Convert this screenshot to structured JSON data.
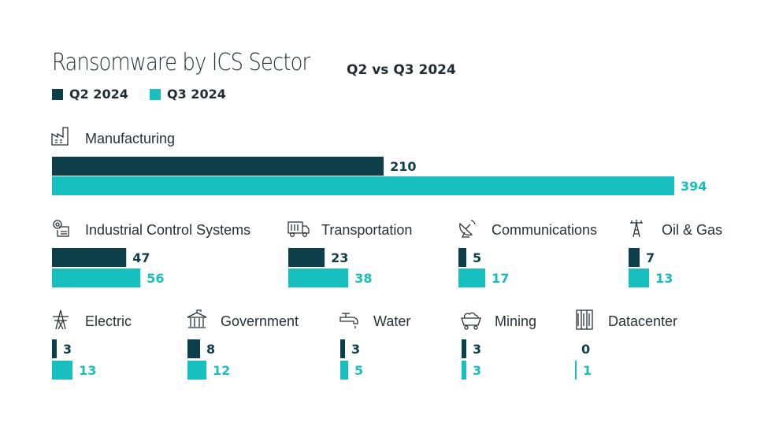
{
  "title": "Ransomware by ICS Sector",
  "subtitle": "Q2 vs Q3 2024",
  "colors": {
    "q2": "#0d3f4a",
    "q3": "#17bfbf"
  },
  "chart_data": {
    "type": "bar",
    "orientation": "horizontal",
    "categories": [
      "Manufacturing",
      "Industrial Control Systems",
      "Transportation",
      "Communications",
      "Oil & Gas",
      "Electric",
      "Government",
      "Water",
      "Mining",
      "Datacenter"
    ],
    "icons": [
      "factory-icon",
      "control-system-icon",
      "truck-icon",
      "satellite-dish-icon",
      "oil-rig-icon",
      "power-tower-icon",
      "government-building-icon",
      "faucet-icon",
      "mine-cart-icon",
      "server-rack-icon"
    ],
    "series": [
      {
        "name": "Q2 2024",
        "values": [
          210,
          47,
          23,
          5,
          7,
          3,
          8,
          3,
          3,
          0
        ]
      },
      {
        "name": "Q3 2024",
        "values": [
          394,
          56,
          38,
          17,
          13,
          13,
          12,
          5,
          3,
          1
        ]
      }
    ],
    "xlim": [
      0,
      394
    ],
    "grid": false,
    "legend": "top-left"
  }
}
